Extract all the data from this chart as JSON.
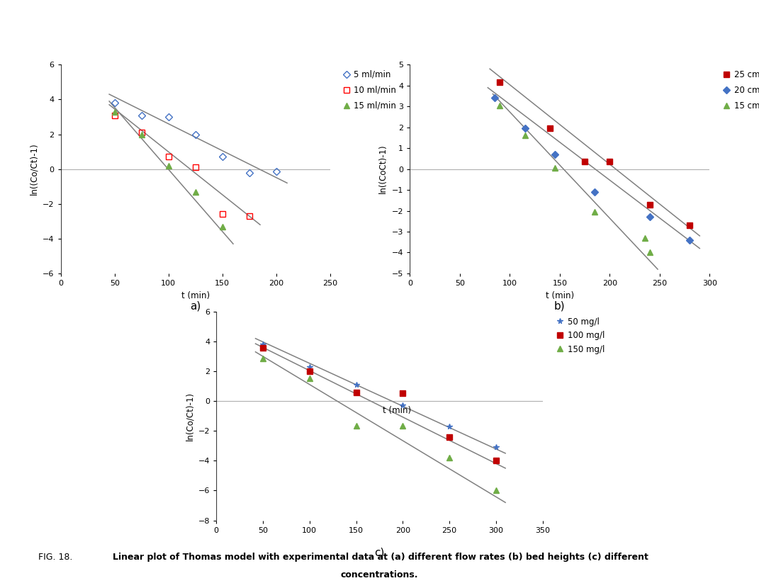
{
  "fig_width": 10.71,
  "fig_height": 8.3,
  "background_color": "#ffffff",
  "caption_prefix": "FIG. 18. ",
  "caption_bold": "Linear plot of Thomas model with experimental data at (a) different flow rates (b) bed heights (c) different",
  "caption_bold2": "concentrations.",
  "subplot_a": {
    "label": "a)",
    "xlabel": "t (min)",
    "ylabel": "ln((Co/Ct)-1)",
    "xlim": [
      0,
      250
    ],
    "ylim": [
      -6,
      6
    ],
    "xticks": [
      0,
      50,
      100,
      150,
      200,
      250
    ],
    "yticks": [
      -6,
      -4,
      -2,
      0,
      2,
      4,
      6
    ],
    "series": [
      {
        "label": "5 ml/min",
        "color": "#4472c4",
        "marker": "D",
        "marker_facecolor": "none",
        "marker_edgecolor": "#4472c4",
        "x": [
          50,
          75,
          100,
          125,
          150,
          175,
          200
        ],
        "y": [
          3.8,
          3.1,
          3.0,
          2.0,
          0.7,
          -0.2,
          -0.15
        ],
        "line_x": [
          45,
          210
        ],
        "line_y": [
          4.3,
          -0.8
        ],
        "line_color": "#808080"
      },
      {
        "label": "10 ml/min",
        "color": "#ff0000",
        "marker": "s",
        "marker_facecolor": "none",
        "marker_edgecolor": "#ff0000",
        "x": [
          50,
          75,
          100,
          125,
          150,
          175
        ],
        "y": [
          3.1,
          2.1,
          0.7,
          0.1,
          -2.6,
          -2.7
        ],
        "line_x": [
          45,
          185
        ],
        "line_y": [
          3.7,
          -3.2
        ],
        "line_color": "#808080"
      },
      {
        "label": "15 ml/min",
        "color": "#70ad47",
        "marker": "^",
        "marker_facecolor": "#70ad47",
        "marker_edgecolor": "#70ad47",
        "x": [
          50,
          75,
          100,
          125,
          150
        ],
        "y": [
          3.3,
          2.0,
          0.2,
          -1.3,
          -3.3
        ],
        "line_x": [
          45,
          160
        ],
        "line_y": [
          3.9,
          -4.3
        ],
        "line_color": "#808080"
      }
    ]
  },
  "subplot_b": {
    "label": "b)",
    "xlabel": "t (min)",
    "ylabel": "ln((CoCt)-1)",
    "xlim": [
      0,
      300
    ],
    "ylim": [
      -5,
      5
    ],
    "xticks": [
      0,
      50,
      100,
      150,
      200,
      250,
      300
    ],
    "yticks": [
      -5,
      -4,
      -3,
      -2,
      -1,
      0,
      1,
      2,
      3,
      4,
      5
    ],
    "series": [
      {
        "label": "25 cm",
        "color": "#c00000",
        "marker": "s",
        "marker_facecolor": "#c00000",
        "marker_edgecolor": "#c00000",
        "x": [
          90,
          140,
          175,
          200,
          240,
          280
        ],
        "y": [
          4.15,
          1.95,
          0.35,
          0.35,
          -1.7,
          -2.7
        ],
        "line_x": [
          80,
          290
        ],
        "line_y": [
          4.8,
          -3.2
        ],
        "line_color": "#808080"
      },
      {
        "label": "20 cm",
        "color": "#4472c4",
        "marker": "D",
        "marker_facecolor": "#4472c4",
        "marker_edgecolor": "#4472c4",
        "x": [
          85,
          115,
          145,
          185,
          240,
          280
        ],
        "y": [
          3.4,
          1.95,
          0.7,
          -1.1,
          -2.3,
          -3.4
        ],
        "line_x": [
          78,
          290
        ],
        "line_y": [
          3.9,
          -3.8
        ],
        "line_color": "#808080"
      },
      {
        "label": "15 cm",
        "color": "#70ad47",
        "marker": "^",
        "marker_facecolor": "#70ad47",
        "marker_edgecolor": "#70ad47",
        "x": [
          90,
          115,
          145,
          185,
          235,
          240
        ],
        "y": [
          3.05,
          1.6,
          0.05,
          -2.05,
          -3.3,
          -4.0
        ],
        "line_x": [
          83,
          248
        ],
        "line_y": [
          3.6,
          -4.8
        ],
        "line_color": "#808080"
      }
    ]
  },
  "subplot_c": {
    "label": "c)",
    "xlabel_inside": "t (min)",
    "ylabel": "ln(Co/Ct)-1)",
    "xlim": [
      0,
      350
    ],
    "ylim": [
      -8,
      6
    ],
    "xticks": [
      0,
      50,
      100,
      150,
      200,
      250,
      300,
      350
    ],
    "yticks": [
      -8,
      -6,
      -4,
      -2,
      0,
      2,
      4,
      6
    ],
    "series": [
      {
        "label": "50 mg/l",
        "color": "#4472c4",
        "marker": "*",
        "marker_facecolor": "#4472c4",
        "marker_edgecolor": "#4472c4",
        "x": [
          50,
          100,
          150,
          200,
          250,
          300
        ],
        "y": [
          3.8,
          2.3,
          1.1,
          -0.3,
          -1.7,
          -3.1
        ],
        "line_x": [
          42,
          310
        ],
        "line_y": [
          4.2,
          -3.5
        ],
        "line_color": "#808080"
      },
      {
        "label": "100 mg/l",
        "color": "#c00000",
        "marker": "s",
        "marker_facecolor": "#c00000",
        "marker_edgecolor": "#c00000",
        "x": [
          50,
          100,
          150,
          200,
          250,
          300
        ],
        "y": [
          3.55,
          2.0,
          0.6,
          0.55,
          -2.4,
          -4.0
        ],
        "line_x": [
          42,
          310
        ],
        "line_y": [
          3.85,
          -4.5
        ],
        "line_color": "#808080"
      },
      {
        "label": "150 mg/l",
        "color": "#70ad47",
        "marker": "^",
        "marker_facecolor": "#70ad47",
        "marker_edgecolor": "#70ad47",
        "x": [
          50,
          100,
          150,
          200,
          250,
          300
        ],
        "y": [
          2.85,
          1.55,
          -1.65,
          -1.65,
          -3.8,
          -6.0
        ],
        "line_x": [
          42,
          310
        ],
        "line_y": [
          3.3,
          -6.8
        ],
        "line_color": "#808080"
      }
    ]
  }
}
